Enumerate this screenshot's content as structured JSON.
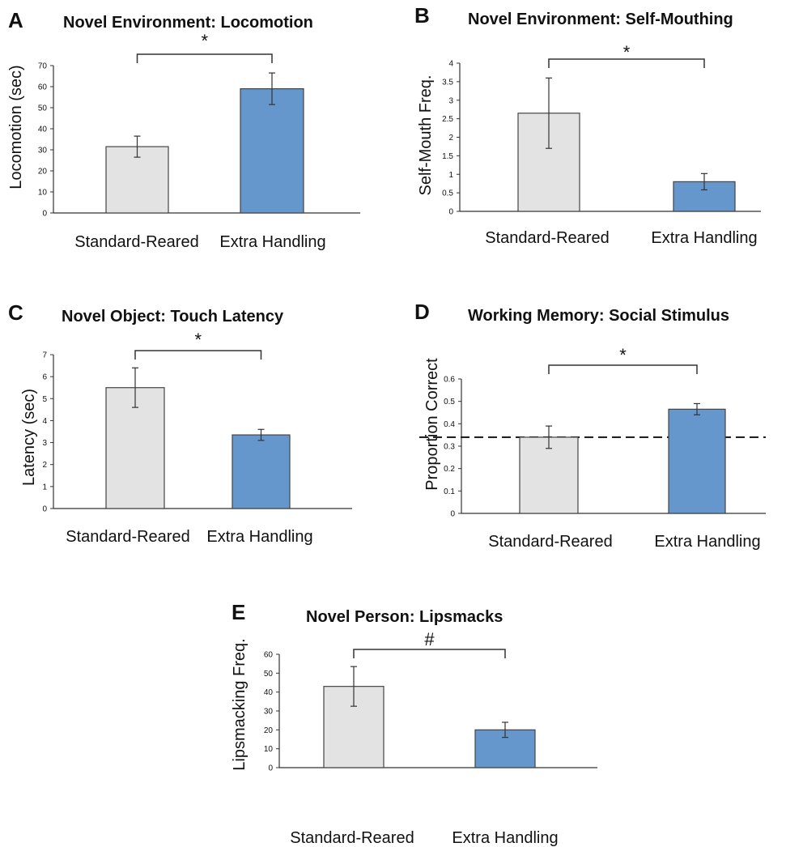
{
  "colors": {
    "standard": "#e3e3e3",
    "extra": "#6596cc",
    "axis": "#333333",
    "outline": "#444444"
  },
  "chart_data": [
    {
      "panel": "A",
      "type": "bar",
      "title": "Novel Environment: Locomotion",
      "ylabel": "Locomotion (sec)",
      "categories": [
        "Standard-Reared",
        "Extra Handling"
      ],
      "values": [
        31.5,
        59
      ],
      "errors": [
        5,
        7.5
      ],
      "ylim": [
        0,
        70
      ],
      "yticks": [
        "0",
        "10",
        "20",
        "30",
        "40",
        "50",
        "60",
        "70"
      ],
      "significance": "*"
    },
    {
      "panel": "B",
      "type": "bar",
      "title": "Novel Environment: Self-Mouthing",
      "ylabel": "Self-Mouth Freq.",
      "categories": [
        "Standard-Reared",
        "Extra Handling"
      ],
      "values": [
        2.65,
        0.8
      ],
      "errors": [
        0.95,
        0.22
      ],
      "ylim": [
        0,
        4
      ],
      "yticks": [
        "0",
        "0.5",
        "1",
        "1.5",
        "2",
        "2.5",
        "3",
        "3.5",
        "4"
      ],
      "significance": "*"
    },
    {
      "panel": "C",
      "type": "bar",
      "title": "Novel Object: Touch Latency",
      "ylabel": "Latency (sec)",
      "categories": [
        "Standard-Reared",
        "Extra Handling"
      ],
      "values": [
        5.5,
        3.35
      ],
      "errors": [
        0.9,
        0.25
      ],
      "ylim": [
        0,
        7
      ],
      "yticks": [
        "0",
        "1",
        "2",
        "3",
        "4",
        "5",
        "6",
        "7"
      ],
      "significance": "*"
    },
    {
      "panel": "D",
      "type": "bar",
      "title": "Working Memory: Social Stimulus",
      "ylabel": "Proportion Correct",
      "categories": [
        "Standard-Reared",
        "Extra Handling"
      ],
      "values": [
        0.34,
        0.465
      ],
      "errors": [
        0.05,
        0.025
      ],
      "ylim": [
        0,
        0.6
      ],
      "yticks": [
        "0",
        "0.1",
        "0.2",
        "0.3",
        "0.4",
        "0.5",
        "0.6"
      ],
      "reference_line": 0.34,
      "significance": "*"
    },
    {
      "panel": "E",
      "type": "bar",
      "title": "Novel Person: Lipsmacks",
      "ylabel": "Lipsmacking Freq.",
      "categories": [
        "Standard-Reared",
        "Extra Handling"
      ],
      "values": [
        43,
        20
      ],
      "errors": [
        10.5,
        4
      ],
      "ylim": [
        0,
        60
      ],
      "yticks": [
        "0",
        "10",
        "20",
        "30",
        "40",
        "50",
        "60"
      ],
      "significance": "#"
    }
  ]
}
